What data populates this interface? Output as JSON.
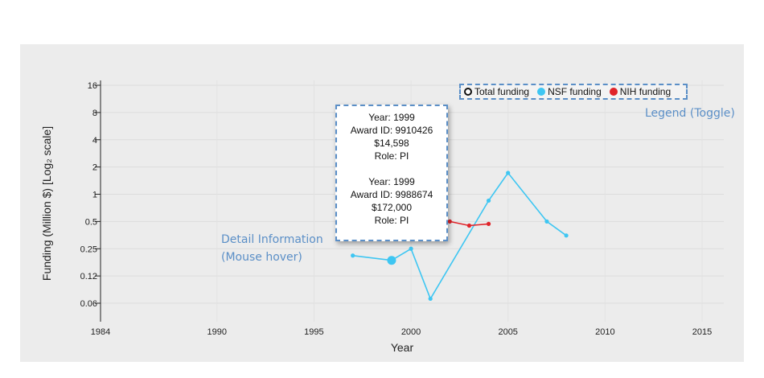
{
  "chart_data": {
    "type": "line",
    "xlabel": "Year",
    "ylabel": "Funding (Million $) [Log₂ scale]",
    "xlim": [
      1984,
      2015
    ],
    "ylim_log2": [
      0.03,
      16
    ],
    "x_ticks": [
      "1984",
      "1990",
      "1995",
      "2000",
      "2005",
      "2010",
      "2015"
    ],
    "x_tick_values": [
      1984,
      1990,
      1995,
      2000,
      2005,
      2010,
      2015
    ],
    "y_ticks": [
      "16",
      "8",
      "4",
      "2",
      "1",
      "0.5",
      "0.25",
      "0.12",
      "0.06"
    ],
    "y_tick_values": [
      16,
      8,
      4,
      2,
      1,
      0.5,
      0.25,
      0.125,
      0.0625
    ],
    "grid": true,
    "legend_position": "top-right",
    "series": [
      {
        "name": "NSF funding",
        "color": "#3ec6f2",
        "points": [
          [
            1997,
            0.21
          ],
          [
            1999,
            0.186
          ],
          [
            2000,
            0.25
          ],
          [
            2001,
            0.07
          ],
          [
            2004,
            0.85
          ],
          [
            2005,
            1.72
          ],
          [
            2007,
            0.5
          ],
          [
            2008,
            0.35
          ]
        ],
        "highlighted_point": [
          1999,
          0.186
        ]
      },
      {
        "name": "NIH funding",
        "color": "#e0242a",
        "points": [
          [
            2002,
            0.5
          ],
          [
            2003,
            0.45
          ],
          [
            2004,
            0.47
          ]
        ]
      }
    ]
  },
  "legend": {
    "items": [
      {
        "label": "Total funding",
        "color": "#111111",
        "hollow": true
      },
      {
        "label": "NSF funding",
        "color": "#3ec6f2",
        "hollow": false
      },
      {
        "label": "NIH funding",
        "color": "#e0242a",
        "hollow": false
      }
    ]
  },
  "tooltip": {
    "entries": [
      {
        "year": "Year: 1999",
        "award": "Award ID: 9910426",
        "amount": "$14,598",
        "role": "Role: PI"
      },
      {
        "year": "Year: 1999",
        "award": "Award ID: 9988674",
        "amount": "$172,000",
        "role": "Role: PI"
      }
    ]
  },
  "annotations": {
    "detail_line1": "Detail Information",
    "detail_line2": "(Mouse hover)",
    "legend_note": "Legend (Toggle)"
  }
}
